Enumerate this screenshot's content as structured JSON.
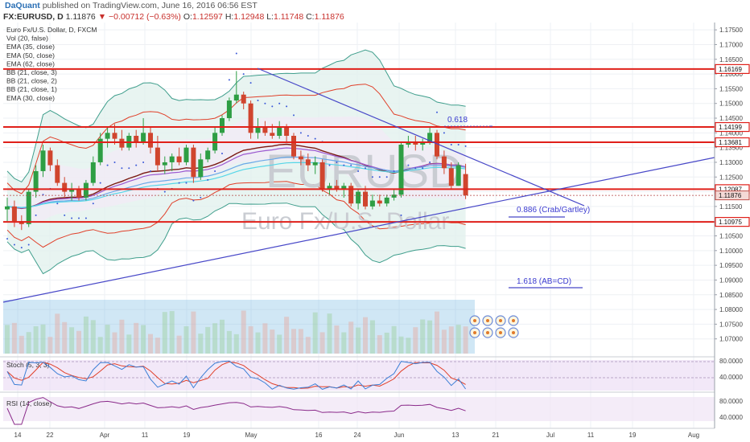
{
  "header": {
    "author": "DaQuant",
    "published": "published on TradingView.com, June 16, 2016 06:56 EST"
  },
  "symbol_bar": {
    "symbol": "FX:EURUSD, D",
    "last": "1.11876",
    "change": "▼ −0.00712 (−0.63%)",
    "open_label": "O:",
    "open": "1.12597",
    "high_label": "H:",
    "high": "1.12948",
    "low_label": "L:",
    "low": "1.11748",
    "close_label": "C:",
    "close": "1.11876"
  },
  "legend": [
    "Euro Fx/U.S. Dollar, D, FXCM",
    "Vol (20, false)",
    "EMA (35, close)",
    "EMA (50, close)",
    "EMA (62, close)",
    "BB (21, close, 3)",
    "BB (21, close, 2)",
    "BB (21, close, 1)",
    "EMA (30, close)"
  ],
  "watermark": {
    "big": "EURUSD",
    "small": "Euro Fx/U.S. Dollar"
  },
  "annotations": {
    "fib_0618": "0.618",
    "fib_0886": "0.886 (Crab/Gartley)",
    "fib_1618": "1.618 (AB=CD)"
  },
  "colors": {
    "up": "#2e9e44",
    "down": "#d0452e",
    "resistance": "#e0201a",
    "trendline": "#4848c8",
    "bb_outer": "#3f9e8c",
    "bb_inner": "#e0402a",
    "ema_dark": "#7a1a12",
    "ema_violet": "#9b59d0",
    "ema_blue": "#6aa8e8",
    "ema_cyan": "#56d6e8",
    "volume": "#78b9e3",
    "stoch_bg": "#ead9f3",
    "stoch_k": "#3c7fd6",
    "stoch_d": "#e0402a",
    "rsi": "#8a2a8a"
  },
  "chart_data": {
    "type": "candlestick",
    "title": "Euro Fx/U.S. Dollar, D, FXCM",
    "ylim": [
      1.065,
      1.1775
    ],
    "y_ticks": [
      "1.17500",
      "1.17000",
      "1.16500",
      "1.16000",
      "1.15500",
      "1.15000",
      "1.14500",
      "1.14000",
      "1.13500",
      "1.13000",
      "1.12500",
      "1.12000",
      "1.11500",
      "1.11000",
      "1.10500",
      "1.10000",
      "1.09500",
      "1.09000",
      "1.08500",
      "1.08000",
      "1.07500",
      "1.07000"
    ],
    "x_ticks": [
      "14",
      "22",
      "Apr",
      "11",
      "19",
      "May",
      "16",
      "24",
      "Jun",
      "13",
      "21",
      "Jul",
      "11",
      "19",
      "Aug"
    ],
    "ohlc": [
      [
        1.114,
        1.118,
        1.11,
        1.115
      ],
      [
        1.115,
        1.117,
        1.108,
        1.11
      ],
      [
        1.11,
        1.112,
        1.107,
        1.109
      ],
      [
        1.109,
        1.121,
        1.108,
        1.12
      ],
      [
        1.12,
        1.129,
        1.118,
        1.127
      ],
      [
        1.127,
        1.136,
        1.125,
        1.134
      ],
      [
        1.134,
        1.135,
        1.127,
        1.129
      ],
      [
        1.129,
        1.131,
        1.122,
        1.123
      ],
      [
        1.123,
        1.125,
        1.118,
        1.12
      ],
      [
        1.12,
        1.123,
        1.117,
        1.121
      ],
      [
        1.121,
        1.122,
        1.117,
        1.118
      ],
      [
        1.118,
        1.124,
        1.117,
        1.123
      ],
      [
        1.123,
        1.132,
        1.122,
        1.13
      ],
      [
        1.13,
        1.14,
        1.129,
        1.138
      ],
      [
        1.138,
        1.142,
        1.135,
        1.14
      ],
      [
        1.14,
        1.143,
        1.136,
        1.138
      ],
      [
        1.138,
        1.141,
        1.134,
        1.135
      ],
      [
        1.135,
        1.14,
        1.134,
        1.139
      ],
      [
        1.139,
        1.141,
        1.135,
        1.137
      ],
      [
        1.137,
        1.145,
        1.136,
        1.14
      ],
      [
        1.14,
        1.142,
        1.133,
        1.135
      ],
      [
        1.135,
        1.139,
        1.127,
        1.129
      ],
      [
        1.129,
        1.132,
        1.126,
        1.13
      ],
      [
        1.13,
        1.133,
        1.127,
        1.132
      ],
      [
        1.132,
        1.135,
        1.129,
        1.13
      ],
      [
        1.13,
        1.136,
        1.129,
        1.135
      ],
      [
        1.135,
        1.136,
        1.123,
        1.125
      ],
      [
        1.125,
        1.133,
        1.124,
        1.131
      ],
      [
        1.131,
        1.135,
        1.13,
        1.134
      ],
      [
        1.134,
        1.142,
        1.133,
        1.14
      ],
      [
        1.14,
        1.146,
        1.139,
        1.145
      ],
      [
        1.145,
        1.152,
        1.144,
        1.151
      ],
      [
        1.151,
        1.161,
        1.15,
        1.153
      ],
      [
        1.153,
        1.154,
        1.148,
        1.15
      ],
      [
        1.15,
        1.151,
        1.138,
        1.14
      ],
      [
        1.14,
        1.145,
        1.138,
        1.142
      ],
      [
        1.142,
        1.144,
        1.139,
        1.14
      ],
      [
        1.14,
        1.143,
        1.138,
        1.139
      ],
      [
        1.139,
        1.144,
        1.138,
        1.142
      ],
      [
        1.142,
        1.143,
        1.137,
        1.139
      ],
      [
        1.139,
        1.14,
        1.131,
        1.132
      ],
      [
        1.132,
        1.134,
        1.129,
        1.131
      ],
      [
        1.131,
        1.133,
        1.127,
        1.129
      ],
      [
        1.129,
        1.132,
        1.126,
        1.13
      ],
      [
        1.13,
        1.131,
        1.12,
        1.121
      ],
      [
        1.121,
        1.123,
        1.119,
        1.122
      ],
      [
        1.122,
        1.124,
        1.12,
        1.121
      ],
      [
        1.121,
        1.123,
        1.118,
        1.122
      ],
      [
        1.122,
        1.123,
        1.115,
        1.116
      ],
      [
        1.116,
        1.121,
        1.114,
        1.12
      ],
      [
        1.12,
        1.122,
        1.114,
        1.115
      ],
      [
        1.115,
        1.119,
        1.114,
        1.117
      ],
      [
        1.117,
        1.119,
        1.115,
        1.116
      ],
      [
        1.116,
        1.119,
        1.115,
        1.118
      ],
      [
        1.118,
        1.121,
        1.117,
        1.119
      ],
      [
        1.119,
        1.137,
        1.118,
        1.136
      ],
      [
        1.136,
        1.139,
        1.135,
        1.137
      ],
      [
        1.137,
        1.139,
        1.134,
        1.136
      ],
      [
        1.136,
        1.138,
        1.134,
        1.137
      ],
      [
        1.137,
        1.142,
        1.136,
        1.14
      ],
      [
        1.14,
        1.141,
        1.131,
        1.132
      ],
      [
        1.132,
        1.134,
        1.126,
        1.128
      ],
      [
        1.128,
        1.13,
        1.121,
        1.122
      ],
      [
        1.122,
        1.13,
        1.122,
        1.129
      ],
      [
        1.126,
        1.1295,
        1.1175,
        1.1188
      ]
    ],
    "resistance_levels": [
      "1.16169",
      "1.14199",
      "1.13681",
      "1.12087",
      "1.10975"
    ],
    "last_price": "1.11876",
    "stochastic": {
      "label": "Stoch (5, 3, 3)",
      "levels": [
        "80.0000",
        "40.0000"
      ]
    },
    "rsi": {
      "label": "RSI (14, close)",
      "levels": [
        "80.0000",
        "40.0000"
      ]
    }
  }
}
